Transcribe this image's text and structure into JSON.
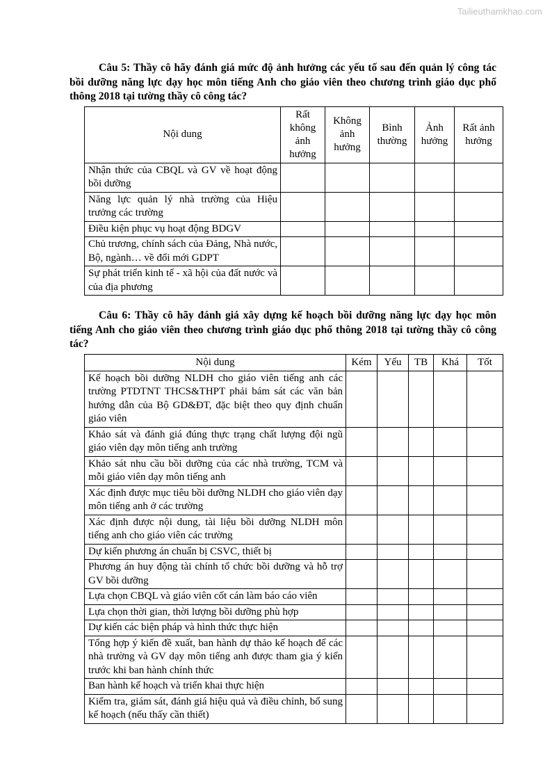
{
  "watermark": "Tailieuthamkhao.com",
  "colors": {
    "text": "#000000",
    "table_border": "#000000",
    "watermark": "#c3c3c3",
    "page_background": "#ffffff"
  },
  "question5": {
    "title": "Câu 5: Thầy cô hãy đánh giá mức độ ảnh hưởng các yếu tố sau đến quản lý công tác bồi dưỡng năng lực dạy học môn tiếng Anh cho giáo viên theo chương trình giáo dục phổ thông 2018 tại tường thầy cô công tác?",
    "table": {
      "columns": [
        "Nội dung",
        "Rất không ảnh hưởng",
        "Không ảnh hưởng",
        "Bình thường",
        "Ảnh hưởng",
        "Rất ảnh hưởng"
      ],
      "rows": [
        "Nhận thức của CBQL và GV về hoạt động bồi dưỡng",
        "Năng lực quản lý nhà trường của Hiệu trưởng các trường",
        "Điều kiện phục vụ hoạt động BDGV",
        "Chủ trương, chính sách của Đảng, Nhà nước, Bộ, ngành… về đổi mới GDPT",
        "Sự phát triển kinh tế - xã hội của đất nước và của địa phương"
      ]
    }
  },
  "question6": {
    "title": "Câu 6: Thầy cô hãy đánh giá xây dựng kế hoạch bồi dưỡng năng lực dạy học môn tiếng Anh cho giáo viên theo chương trình giáo dục phổ thông 2018 tại tường thầy cô công tác?",
    "table": {
      "columns": [
        "Nội dung",
        "Kém",
        "Yếu",
        "TB",
        "Khá",
        "Tốt"
      ],
      "rows": [
        "Kế hoạch bồi dưỡng NLDH cho giáo viên tiếng anh các trường PTDTNT THCS&THPT phải bám sát các văn bản hướng dẫn của Bộ GD&ĐT, đặc biệt theo quy định chuẩn giáo viên",
        "Khảo sát và đánh giá đúng thực trạng chất lượng đội ngũ giáo viên dạy môn tiếng anh trường",
        "Khảo sát nhu cầu bồi dưỡng của các nhà trường, TCM và mỗi giáo viên dạy môn tiếng anh",
        "Xác định được mục tiêu bồi dưỡng NLDH cho giáo viên dạy môn tiếng anh ở các trường",
        "Xác định được nội dung, tài liệu bồi dưỡng NLDH môn tiếng anh cho giáo viên các trường",
        "Dự kiến phương án chuẩn bị CSVC, thiết bị",
        "Phương án huy động tài chính tổ chức bồi dưỡng và hỗ trợ GV bồi dưỡng",
        "Lựa chọn CBQL và giáo viên cốt cán làm báo cáo viên",
        "Lựa chọn thời gian, thời lượng bồi dưỡng phù hợp",
        "Dự kiến các biện pháp và hình thức thực hiện",
        "Tổng hợp ý kiến đề xuất, ban hành dự thảo kế hoạch để các nhà trường và GV dạy môn tiếng anh được tham gia ý kiến trước khi ban hành chính thức",
        "Ban hành kế hoạch và triển khai thực hiện",
        "Kiểm tra, giám sát, đánh giá hiệu quả và điều chỉnh, bổ sung kế hoạch (nếu thấy cần thiết)"
      ]
    }
  }
}
